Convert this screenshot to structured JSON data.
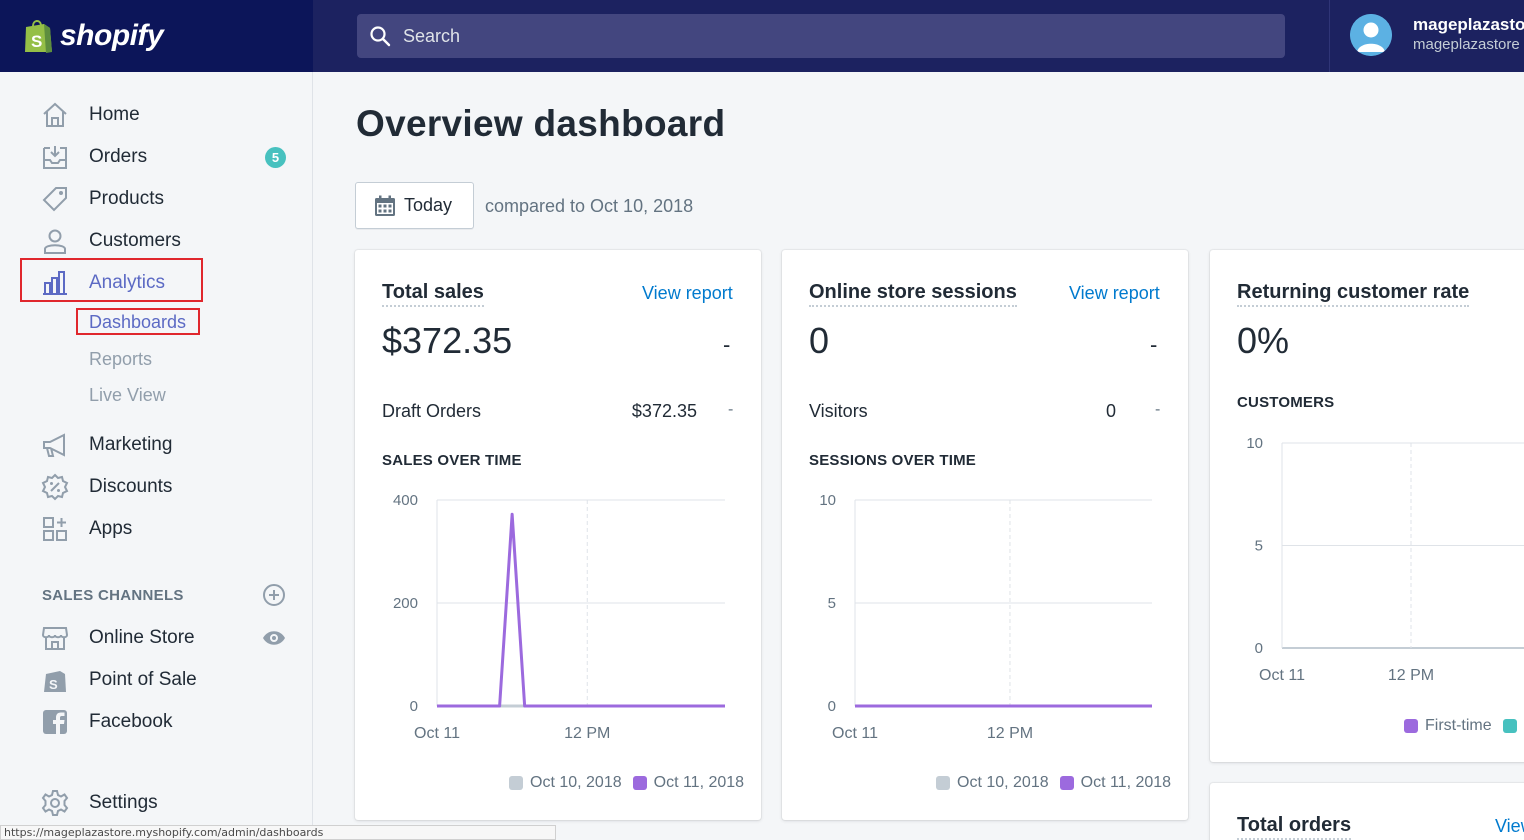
{
  "brand": {
    "name": "shopify"
  },
  "search": {
    "placeholder": "Search"
  },
  "user": {
    "name": "mageplazastore",
    "store": "mageplazastore"
  },
  "sidebar": {
    "items": [
      {
        "label": "Home",
        "icon": "home-icon"
      },
      {
        "label": "Orders",
        "icon": "orders-icon",
        "badge": "5"
      },
      {
        "label": "Products",
        "icon": "tag-icon"
      },
      {
        "label": "Customers",
        "icon": "user-icon"
      },
      {
        "label": "Analytics",
        "icon": "bar-chart-icon"
      },
      {
        "label": "Marketing",
        "icon": "megaphone-icon"
      },
      {
        "label": "Discounts",
        "icon": "discount-icon"
      },
      {
        "label": "Apps",
        "icon": "apps-icon"
      }
    ],
    "analytics_sub": [
      "Dashboards",
      "Reports",
      "Live View"
    ],
    "sales_channels_title": "SALES CHANNELS",
    "channels": [
      {
        "label": "Online Store",
        "icon": "store-icon"
      },
      {
        "label": "Point of Sale",
        "icon": "pos-icon"
      },
      {
        "label": "Facebook",
        "icon": "facebook-icon"
      }
    ],
    "settings": "Settings"
  },
  "main": {
    "title": "Overview dashboard",
    "date_button": "Today",
    "compare_text": "compared to Oct 10, 2018"
  },
  "cards": {
    "total_sales": {
      "title": "Total sales",
      "link": "View report",
      "value": "$372.35",
      "change": "-",
      "row_label": "Draft Orders",
      "row_value": "$372.35",
      "row_change": "-",
      "chart_title": "SALES OVER TIME"
    },
    "sessions": {
      "title": "Online store sessions",
      "link": "View report",
      "value": "0",
      "change": "-",
      "row_label": "Visitors",
      "row_value": "0",
      "row_change": "-",
      "chart_title": "SESSIONS OVER TIME"
    },
    "returning": {
      "title": "Returning customer rate",
      "value": "0%",
      "chart_title": "CUSTOMERS"
    },
    "total_orders": {
      "title": "Total orders",
      "link": "View report"
    }
  },
  "legends": {
    "prev": "Oct 10, 2018",
    "curr": "Oct 11, 2018",
    "first_time": "First-time"
  },
  "colors": {
    "prev": "#c4cdd5",
    "curr": "#9c6ade",
    "first_time": "#9c6ade",
    "returning": "#47c1bf"
  },
  "chart_data": [
    {
      "type": "line",
      "title": "SALES OVER TIME",
      "ylim": [
        0,
        400
      ],
      "y_ticks": [
        0,
        200,
        400
      ],
      "x_tick_labels": [
        "Oct 11",
        "12 PM"
      ],
      "x_hours": [
        0,
        12
      ],
      "xlim_hours": [
        0,
        23
      ],
      "series": [
        {
          "name": "Oct 10, 2018",
          "hours": [
            0,
            23
          ],
          "values": [
            0,
            0
          ]
        },
        {
          "name": "Oct 11, 2018",
          "hours": [
            0,
            5,
            6,
            7,
            23
          ],
          "values": [
            0,
            0,
            372.35,
            0,
            0
          ]
        }
      ]
    },
    {
      "type": "line",
      "title": "SESSIONS OVER TIME",
      "ylim": [
        0,
        10
      ],
      "y_ticks": [
        0,
        5,
        10
      ],
      "x_tick_labels": [
        "Oct 11",
        "12 PM"
      ],
      "x_hours": [
        0,
        12
      ],
      "xlim_hours": [
        0,
        23
      ],
      "series": [
        {
          "name": "Oct 10, 2018",
          "hours": [
            0,
            23
          ],
          "values": [
            0,
            0
          ]
        },
        {
          "name": "Oct 11, 2018",
          "hours": [
            0,
            23
          ],
          "values": [
            0,
            0
          ]
        }
      ]
    },
    {
      "type": "bar",
      "title": "CUSTOMERS",
      "ylim": [
        0,
        10
      ],
      "y_ticks": [
        0,
        5,
        10
      ],
      "x_tick_labels": [
        "Oct 11",
        "12 PM"
      ],
      "x_hours": [
        0,
        12
      ],
      "series": [
        {
          "name": "First-time",
          "values": []
        }
      ]
    }
  ],
  "status_bar": "https://mageplazastore.myshopify.com/admin/dashboards"
}
